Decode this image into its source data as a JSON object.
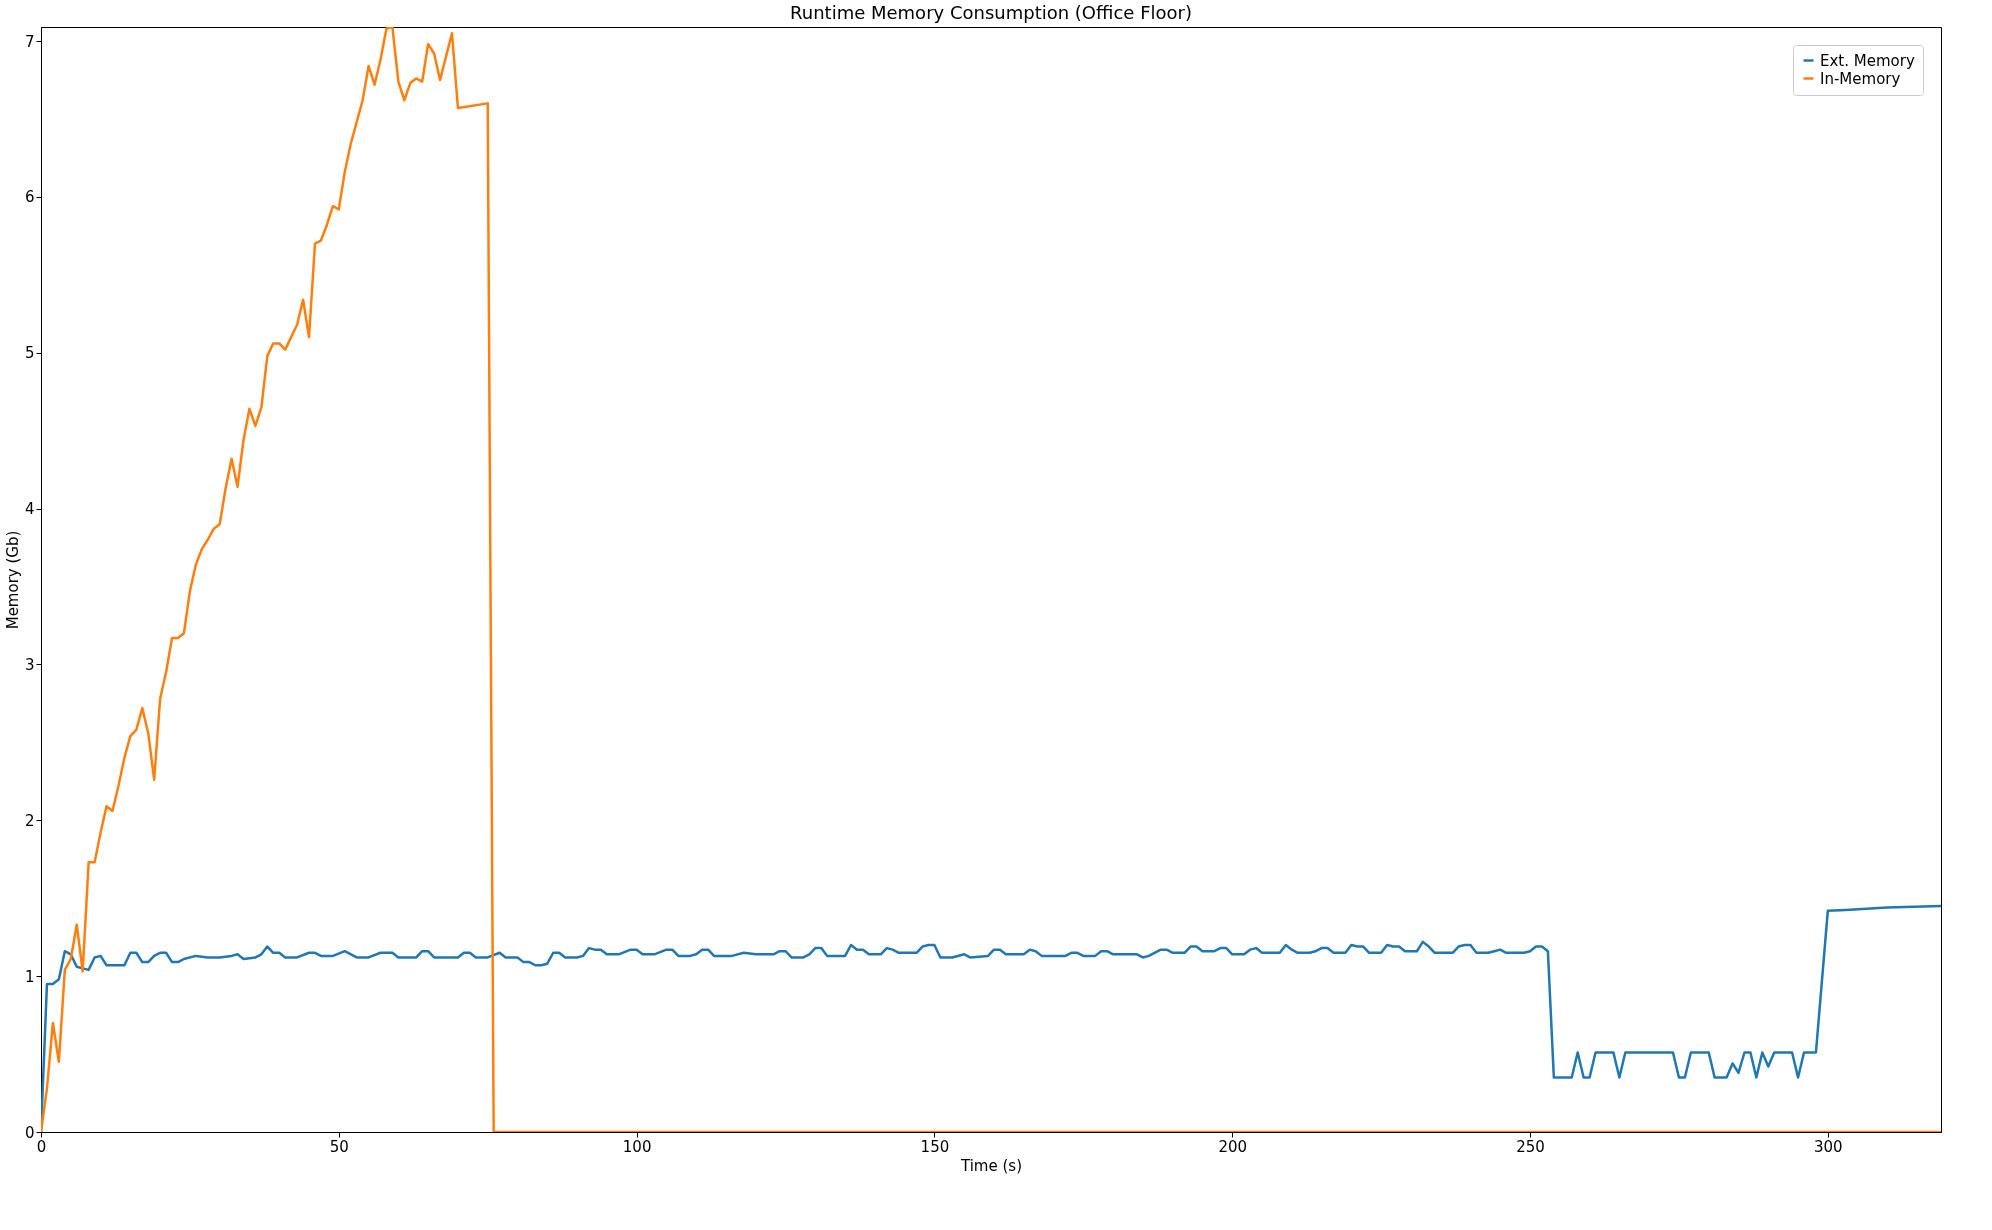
{
  "chart_data": {
    "type": "line",
    "title": "Runtime Memory Consumption (Office Floor)",
    "xlabel": "Time (s)",
    "ylabel": "Memory (Gb)",
    "xlim": [
      0,
      319
    ],
    "ylim": [
      0,
      7.09
    ],
    "xticks": [
      0,
      50,
      100,
      150,
      200,
      250,
      300
    ],
    "yticks": [
      0,
      1,
      2,
      3,
      4,
      5,
      6,
      7
    ],
    "grid": false,
    "legend": "top right",
    "line_style": "solid",
    "marker": "none",
    "series": [
      {
        "name": "Ext. Memory",
        "color": "#1f77b4",
        "x": [
          0,
          1,
          2,
          3,
          4,
          5,
          6,
          7,
          8,
          9,
          10,
          11,
          14,
          15,
          16,
          17,
          18,
          19,
          20,
          21,
          22,
          23,
          24,
          26,
          28,
          30,
          32,
          33,
          34,
          36,
          37,
          38,
          39,
          40,
          41,
          43,
          45,
          46,
          47,
          49,
          51,
          53,
          55,
          57,
          58,
          59,
          60,
          63,
          64,
          65,
          66,
          70,
          71,
          72,
          73,
          75,
          77,
          78,
          80,
          81,
          82,
          83,
          84,
          85,
          86,
          87,
          88,
          90,
          91,
          92,
          93,
          94,
          95,
          97,
          99,
          100,
          101,
          103,
          105,
          106,
          107,
          109,
          110,
          111,
          112,
          113,
          116,
          118,
          120,
          123,
          124,
          125,
          126,
          128,
          129,
          130,
          131,
          132,
          135,
          136,
          137,
          138,
          139,
          141,
          142,
          143,
          144,
          147,
          148,
          149,
          150,
          151,
          153,
          155,
          156,
          159,
          160,
          161,
          162,
          165,
          166,
          167,
          168,
          172,
          173,
          174,
          175,
          177,
          178,
          179,
          180,
          183,
          184,
          185,
          186,
          188,
          189,
          190,
          192,
          193,
          194,
          195,
          197,
          198,
          199,
          200,
          202,
          203,
          204,
          205,
          208,
          209,
          210,
          211,
          213,
          214,
          215,
          216,
          217,
          219,
          220,
          221,
          222,
          223,
          225,
          226,
          227,
          228,
          229,
          231,
          232,
          233,
          234,
          237,
          238,
          239,
          240,
          241,
          243,
          244,
          245,
          246,
          249,
          250,
          251,
          252,
          253,
          254,
          257,
          258,
          259,
          260,
          261,
          264,
          265,
          266,
          274,
          275,
          276,
          277,
          280,
          281,
          283,
          284,
          285,
          286,
          287,
          288,
          289,
          290,
          291,
          294,
          295,
          296,
          298,
          300,
          303,
          310,
          319
        ],
        "values": [
          0,
          0.95,
          0.95,
          0.98,
          1.16,
          1.14,
          1.06,
          1.05,
          1.04,
          1.12,
          1.13,
          1.07,
          1.07,
          1.15,
          1.15,
          1.09,
          1.09,
          1.13,
          1.15,
          1.15,
          1.09,
          1.09,
          1.11,
          1.13,
          1.12,
          1.12,
          1.13,
          1.14,
          1.11,
          1.12,
          1.14,
          1.19,
          1.15,
          1.15,
          1.12,
          1.12,
          1.15,
          1.15,
          1.13,
          1.13,
          1.16,
          1.12,
          1.12,
          1.15,
          1.15,
          1.15,
          1.12,
          1.12,
          1.16,
          1.16,
          1.12,
          1.12,
          1.15,
          1.15,
          1.12,
          1.12,
          1.15,
          1.12,
          1.12,
          1.09,
          1.09,
          1.07,
          1.07,
          1.08,
          1.15,
          1.15,
          1.12,
          1.12,
          1.13,
          1.18,
          1.17,
          1.17,
          1.14,
          1.14,
          1.17,
          1.17,
          1.14,
          1.14,
          1.17,
          1.17,
          1.13,
          1.13,
          1.14,
          1.17,
          1.17,
          1.13,
          1.13,
          1.15,
          1.14,
          1.14,
          1.16,
          1.16,
          1.12,
          1.12,
          1.14,
          1.18,
          1.18,
          1.13,
          1.13,
          1.2,
          1.17,
          1.17,
          1.14,
          1.14,
          1.18,
          1.17,
          1.15,
          1.15,
          1.19,
          1.2,
          1.2,
          1.12,
          1.12,
          1.14,
          1.12,
          1.13,
          1.17,
          1.17,
          1.14,
          1.14,
          1.17,
          1.16,
          1.13,
          1.13,
          1.15,
          1.15,
          1.13,
          1.13,
          1.16,
          1.16,
          1.14,
          1.14,
          1.14,
          1.12,
          1.13,
          1.17,
          1.17,
          1.15,
          1.15,
          1.19,
          1.19,
          1.16,
          1.16,
          1.18,
          1.18,
          1.14,
          1.14,
          1.17,
          1.18,
          1.15,
          1.15,
          1.2,
          1.17,
          1.15,
          1.15,
          1.16,
          1.18,
          1.18,
          1.15,
          1.15,
          1.2,
          1.19,
          1.19,
          1.15,
          1.15,
          1.2,
          1.19,
          1.19,
          1.16,
          1.16,
          1.22,
          1.19,
          1.15,
          1.15,
          1.19,
          1.2,
          1.2,
          1.15,
          1.15,
          1.16,
          1.17,
          1.15,
          1.15,
          1.16,
          1.19,
          1.19,
          1.16,
          0.35,
          0.35,
          0.51,
          0.35,
          0.35,
          0.51,
          0.51,
          0.35,
          0.51,
          0.51,
          0.35,
          0.35,
          0.51,
          0.51,
          0.35,
          0.35,
          0.44,
          0.38,
          0.51,
          0.51,
          0.35,
          0.51,
          0.42,
          0.51,
          0.51,
          0.35,
          0.51,
          0.51,
          1.42,
          1.425,
          1.44,
          1.45
        ]
      },
      {
        "name": "In-Memory",
        "color": "#ff7f0e",
        "x": [
          0,
          1,
          2,
          3,
          4,
          5,
          6,
          7,
          8,
          9,
          10,
          11,
          12,
          13,
          14,
          15,
          16,
          17,
          18,
          19,
          20,
          21,
          22,
          23,
          24,
          25,
          26,
          27,
          28,
          29,
          30,
          31,
          32,
          33,
          34,
          35,
          36,
          37,
          38,
          39,
          40,
          41,
          42,
          43,
          44,
          45,
          46,
          47,
          48,
          49,
          50,
          51,
          52,
          53,
          54,
          55,
          56,
          57,
          58,
          59,
          60,
          61,
          62,
          63,
          64,
          65,
          66,
          67,
          68,
          69,
          70,
          75,
          76,
          319
        ],
        "values": [
          0,
          0.28,
          0.7,
          0.45,
          1.04,
          1.11,
          1.33,
          1.03,
          1.73,
          1.73,
          1.92,
          2.09,
          2.06,
          2.22,
          2.4,
          2.54,
          2.58,
          2.72,
          2.56,
          2.26,
          2.78,
          2.95,
          3.17,
          3.17,
          3.2,
          3.47,
          3.64,
          3.74,
          3.8,
          3.87,
          3.9,
          4.13,
          4.32,
          4.14,
          4.44,
          4.64,
          4.53,
          4.65,
          4.98,
          5.06,
          5.06,
          5.02,
          5.1,
          5.18,
          5.34,
          5.1,
          5.7,
          5.72,
          5.82,
          5.94,
          5.92,
          6.16,
          6.34,
          6.48,
          6.62,
          6.84,
          6.72,
          6.88,
          7.08,
          7.09,
          6.74,
          6.62,
          6.73,
          6.76,
          6.74,
          6.98,
          6.92,
          6.75,
          6.9,
          7.05,
          6.57,
          6.6,
          0,
          0
        ]
      }
    ]
  }
}
